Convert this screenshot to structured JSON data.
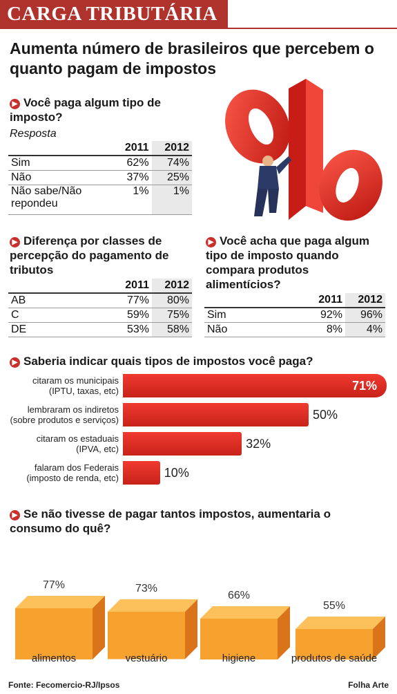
{
  "banner_title": "CARGA TRIBUTÁRIA",
  "headline": "Aumenta número de brasileiros que percebem o quanto pagam de impostos",
  "q1": {
    "question": "Você paga algum tipo de imposto?",
    "subtitle": "Resposta",
    "years": [
      "2011",
      "2012"
    ],
    "rows": [
      {
        "label": "Sim",
        "v2011": "62%",
        "v2012": "74%"
      },
      {
        "label": "Não",
        "v2011": "37%",
        "v2012": "25%"
      },
      {
        "label": "Não sabe/Não repondeu",
        "v2011": "1%",
        "v2012": "1%"
      }
    ]
  },
  "q2": {
    "question": "Diferença por classes de percepção do pagamento de tributos",
    "years": [
      "2011",
      "2012"
    ],
    "rows": [
      {
        "label": "AB",
        "v2011": "77%",
        "v2012": "80%"
      },
      {
        "label": "C",
        "v2011": "59%",
        "v2012": "75%"
      },
      {
        "label": "DE",
        "v2011": "53%",
        "v2012": "58%"
      }
    ]
  },
  "q3": {
    "question": "Você acha que paga algum tipo de imposto quando compara produtos alimentícios?",
    "years": [
      "2011",
      "2012"
    ],
    "rows": [
      {
        "label": "Sim",
        "v2011": "92%",
        "v2012": "96%"
      },
      {
        "label": "Não",
        "v2011": "8%",
        "v2012": "4%"
      }
    ]
  },
  "q4_question": "Saberia indicar quais tipos de impostos você paga?",
  "q5_question": "Se não tivesse de pagar tantos impostos, aumentaria o consumo do quê?",
  "footer": {
    "source": "Fonte: Fecomercio-RJ/Ipsos",
    "credit": "Folha Arte"
  },
  "colors": {
    "banner": "#b0322c",
    "bar_red": "#e8332a",
    "bar_orange": "#f7a12e"
  },
  "chart_data": [
    {
      "type": "bar",
      "orientation": "horizontal",
      "categories": [
        "citaram os municipais (IPTU, taxas, etc)",
        "lembraram os indiretos (sobre produtos e serviços)",
        "citaram os estaduais (IPVA, etc)",
        "falaram dos Federais (imposto de renda, etc)"
      ],
      "values": [
        71,
        50,
        32,
        10
      ],
      "labels": [
        "71%",
        "50%",
        "32%",
        "10%"
      ],
      "unit": "%"
    },
    {
      "type": "bar",
      "categories": [
        "alimentos",
        "vestuário",
        "higiene",
        "produtos de saúde"
      ],
      "values": [
        77,
        73,
        66,
        55
      ],
      "labels": [
        "77%",
        "73%",
        "66%",
        "55%"
      ],
      "unit": "%"
    }
  ]
}
